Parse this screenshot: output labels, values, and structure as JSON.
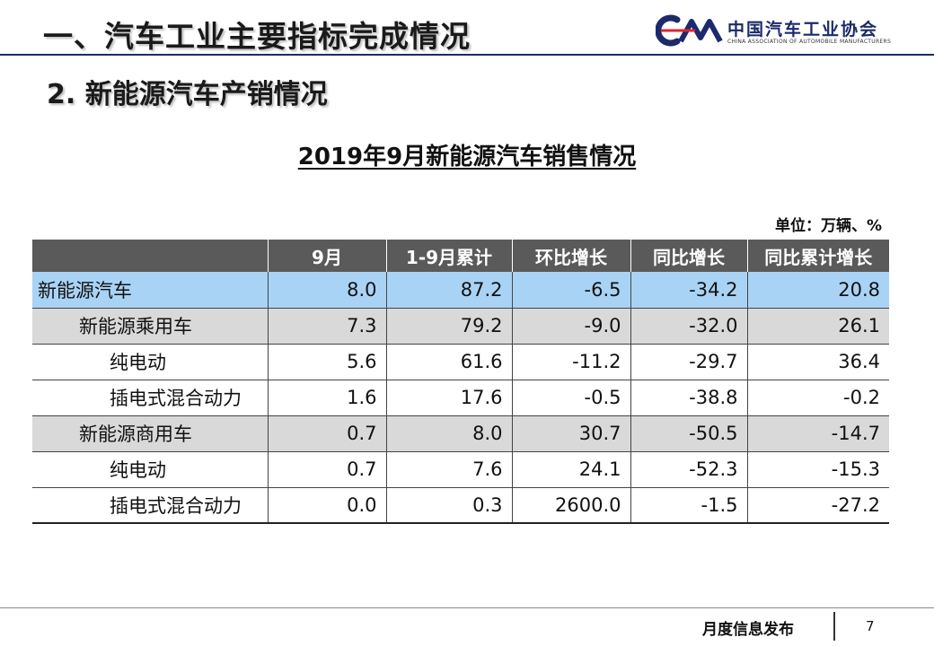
{
  "header": {
    "title": "一、汽车工业主要指标完成情况",
    "logo_cn": "中国汽车工业协会",
    "logo_en": "CHINA ASSOCIATION OF AUTOMOBILE MANUFACTURERS"
  },
  "section_title": "2. 新能源汽车产销情况",
  "table": {
    "title": "2019年9月新能源汽车销售情况",
    "unit": "单位：万辆、%",
    "columns": [
      "",
      "9月",
      "1-9月累计",
      "环比增长",
      "同比增长",
      "同比累计增长"
    ],
    "rows": [
      {
        "label": "新能源汽车",
        "level": 0,
        "values": [
          "8.0",
          "87.2",
          "-6.5",
          "-34.2",
          "20.8"
        ]
      },
      {
        "label": "新能源乘用车",
        "level": 1,
        "values": [
          "7.3",
          "79.2",
          "-9.0",
          "-32.0",
          "26.1"
        ]
      },
      {
        "label": "纯电动",
        "level": 2,
        "values": [
          "5.6",
          "61.6",
          "-11.2",
          "-29.7",
          "36.4"
        ]
      },
      {
        "label": "插电式混合动力",
        "level": 2,
        "values": [
          "1.6",
          "17.6",
          "-0.5",
          "-38.8",
          "-0.2"
        ]
      },
      {
        "label": "新能源商用车",
        "level": 1,
        "values": [
          "0.7",
          "8.0",
          "30.7",
          "-50.5",
          "-14.7"
        ]
      },
      {
        "label": "纯电动",
        "level": 2,
        "values": [
          "0.7",
          "7.6",
          "24.1",
          "-52.3",
          "-15.3"
        ]
      },
      {
        "label": "插电式混合动力",
        "level": 2,
        "values": [
          "0.0",
          "0.3",
          "2600.0",
          "-1.5",
          "-27.2"
        ]
      }
    ]
  },
  "footer": {
    "text": "月度信息发布",
    "page": "7"
  },
  "colors": {
    "brand": "#1c2a6b",
    "header_row": "#5a5a5a",
    "highlight_row": "#a9d3f5",
    "group_row": "#d9d9d9"
  }
}
